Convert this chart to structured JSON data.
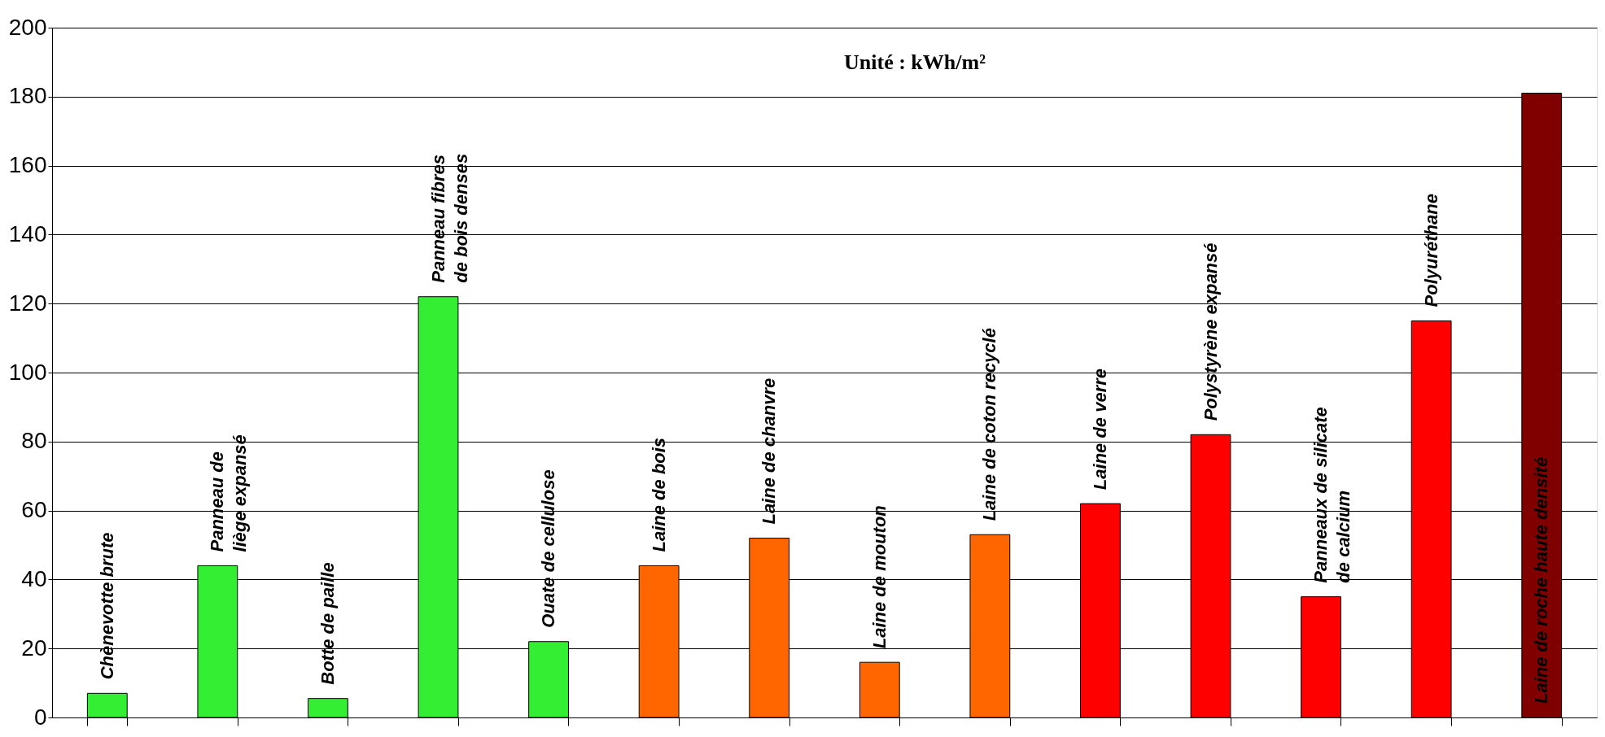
{
  "chart_data": {
    "type": "bar",
    "categories": [
      "Chènevotte brute",
      "Panneau de\nliège expansé",
      "Botte de paille",
      "Panneau fibres\nde bois denses",
      "Ouate de cellulose",
      "Laine de bois",
      "Laine de chanvre",
      "Laine de mouton",
      "Laine de coton recyclé",
      "Laine de verre",
      "Polystyrène expansé",
      "Panneaux de silicate\nde calcium",
      "Polyuréthane",
      "Laine de roche    haute densité"
    ],
    "values": [
      7,
      44,
      5.5,
      122,
      22,
      44,
      52,
      16,
      53,
      62,
      82,
      35,
      115,
      181
    ],
    "colors": [
      "#33ee33",
      "#33ee33",
      "#33ee33",
      "#33ee33",
      "#33ee33",
      "#ff6600",
      "#ff6600",
      "#ff6600",
      "#ff6600",
      "#ff0000",
      "#ff0000",
      "#ff0000",
      "#ff0000",
      "#800000"
    ],
    "ylim": [
      0,
      200
    ],
    "yticks": [
      0,
      20,
      40,
      60,
      80,
      100,
      120,
      140,
      160,
      180,
      200
    ],
    "grid": "y",
    "tick_labels": "y",
    "annotations": [
      "Unité : kWh/m²"
    ]
  }
}
